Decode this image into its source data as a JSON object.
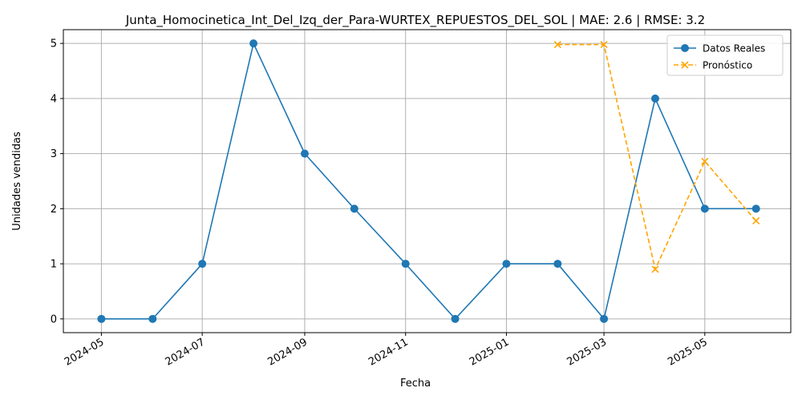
{
  "chart_data": {
    "type": "line",
    "title": "Junta_Homocinetica_Int_Del_Izq_der_Para-WURTEX_REPUESTOS_DEL_SOL | MAE: 2.6 | RMSE: 3.2",
    "xlabel": "Fecha",
    "ylabel": "Unidades vendidas",
    "x_axis_type": "date",
    "xlim": [
      "2024-04-08",
      "2025-06-22"
    ],
    "ylim": [
      -0.25,
      5.25
    ],
    "x_ticks": [
      "2024-05",
      "2024-07",
      "2024-09",
      "2024-11",
      "2025-01",
      "2025-03",
      "2025-05"
    ],
    "x_tick_dates": [
      "2024-05-01",
      "2024-07-01",
      "2024-09-01",
      "2024-11-01",
      "2025-01-01",
      "2025-03-01",
      "2025-05-01"
    ],
    "y_ticks": [
      0,
      1,
      2,
      3,
      4,
      5
    ],
    "grid": true,
    "legend_position": "top-right",
    "series": [
      {
        "name": "Datos Reales",
        "color": "#1f77b4",
        "line_style": "solid",
        "marker": "circle",
        "x": [
          "2024-05-01",
          "2024-06-01",
          "2024-07-01",
          "2024-08-01",
          "2024-09-01",
          "2024-10-01",
          "2024-11-01",
          "2024-12-01",
          "2025-01-01",
          "2025-02-01",
          "2025-03-01",
          "2025-04-01",
          "2025-05-01",
          "2025-06-01"
        ],
        "values": [
          0,
          0,
          1,
          5,
          3,
          2,
          1,
          0,
          1,
          1,
          0,
          4,
          2,
          2
        ]
      },
      {
        "name": "Pronóstico",
        "color": "#ffa500",
        "line_style": "dashed",
        "marker": "x",
        "x": [
          "2025-02-01",
          "2025-03-01",
          "2025-04-01",
          "2025-05-01",
          "2025-06-01"
        ],
        "values": [
          4.98,
          4.98,
          0.9,
          2.86,
          1.78
        ]
      }
    ]
  }
}
